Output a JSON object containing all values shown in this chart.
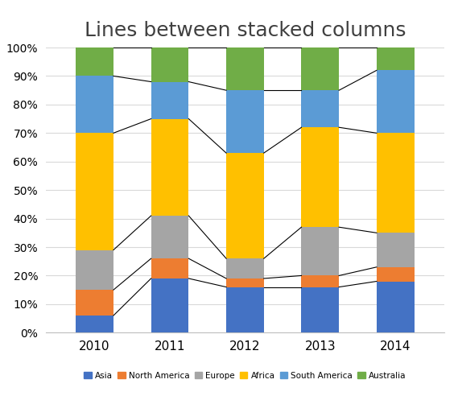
{
  "title": "Lines between stacked columns",
  "years": [
    "2010",
    "2011",
    "2012",
    "2013",
    "2014"
  ],
  "categories": [
    "Asia",
    "North America",
    "Europe",
    "Africa",
    "South America",
    "Australia"
  ],
  "colors": [
    "#4472C4",
    "#ED7D31",
    "#A5A5A5",
    "#FFC000",
    "#5B9BD5",
    "#70AD47"
  ],
  "cumulative": [
    [
      6,
      15,
      29,
      70,
      90,
      100
    ],
    [
      19,
      26,
      41,
      75,
      88,
      100
    ],
    [
      16,
      19,
      26,
      63,
      85,
      100
    ],
    [
      16,
      20,
      37,
      72,
      85,
      100
    ],
    [
      18,
      23,
      35,
      70,
      92,
      100
    ]
  ],
  "background_color": "#FFFFFF",
  "grid_color": "#D9D9D9",
  "bar_width": 0.5,
  "title_fontsize": 18
}
